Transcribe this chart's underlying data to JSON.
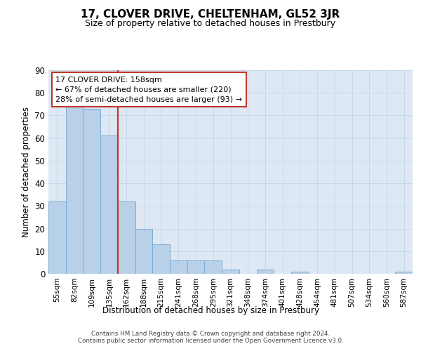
{
  "title": "17, CLOVER DRIVE, CHELTENHAM, GL52 3JR",
  "subtitle": "Size of property relative to detached houses in Prestbury",
  "xlabel": "Distribution of detached houses by size in Prestbury",
  "ylabel": "Number of detached properties",
  "categories": [
    "55sqm",
    "82sqm",
    "109sqm",
    "135sqm",
    "162sqm",
    "188sqm",
    "215sqm",
    "241sqm",
    "268sqm",
    "295sqm",
    "321sqm",
    "348sqm",
    "374sqm",
    "401sqm",
    "428sqm",
    "454sqm",
    "481sqm",
    "507sqm",
    "534sqm",
    "560sqm",
    "587sqm"
  ],
  "values": [
    32,
    75,
    73,
    61,
    32,
    20,
    13,
    6,
    6,
    6,
    2,
    0,
    2,
    0,
    1,
    0,
    0,
    0,
    0,
    0,
    1
  ],
  "bar_color": "#b8d0e8",
  "bar_edge_color": "#7aadd4",
  "vline_color": "#c0392b",
  "annotation_line1": "17 CLOVER DRIVE: 158sqm",
  "annotation_line2": "← 67% of detached houses are smaller (220)",
  "annotation_line3": "28% of semi-detached houses are larger (93) →",
  "annotation_box_color": "#ffffff",
  "annotation_box_edge_color": "#c0392b",
  "ylim": [
    0,
    90
  ],
  "yticks": [
    0,
    10,
    20,
    30,
    40,
    50,
    60,
    70,
    80,
    90
  ],
  "grid_color": "#c8d8e8",
  "bg_color": "#dde8f4",
  "footer_line1": "Contains HM Land Registry data © Crown copyright and database right 2024.",
  "footer_line2": "Contains public sector information licensed under the Open Government Licence v3.0."
}
